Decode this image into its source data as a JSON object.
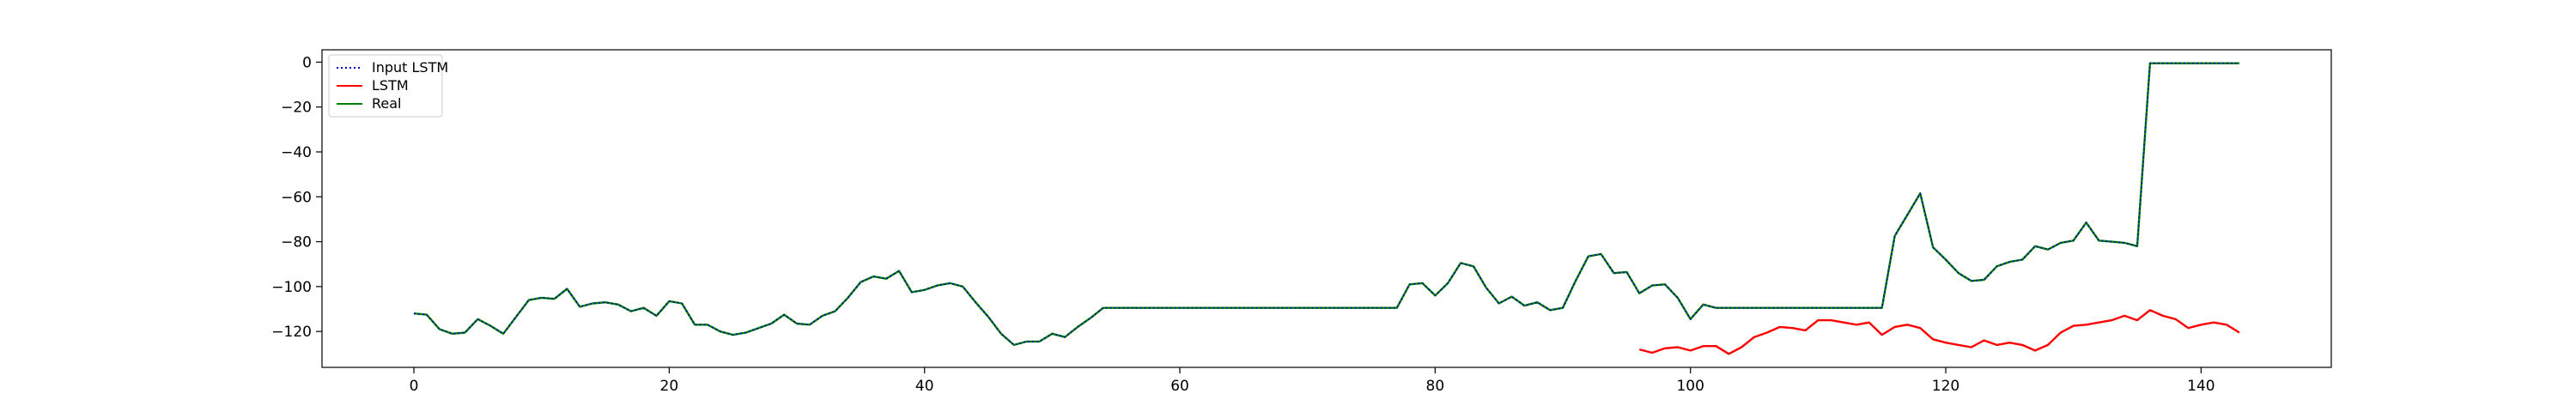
{
  "chart_data": {
    "type": "line",
    "title": "",
    "xlabel": "",
    "ylabel": "",
    "xlim": [
      -7.2,
      150.2
    ],
    "ylim": [
      -136,
      5.5
    ],
    "xticks": [
      0,
      20,
      40,
      60,
      80,
      100,
      120,
      140
    ],
    "yticks": [
      0,
      -20,
      -40,
      -60,
      -80,
      -100,
      -120
    ],
    "grid": false,
    "legend_position": "top-left",
    "legend": [
      "Input LSTM",
      "LSTM",
      "Real"
    ],
    "series": [
      {
        "name": "Input LSTM",
        "color": "#0000bf",
        "style": "dotted",
        "x_start": 0,
        "values": [
          -112,
          -112.5,
          -119,
          -121,
          -120.5,
          -114.5,
          -117.5,
          -121,
          -113.5,
          -106,
          -105,
          -105.5,
          -101,
          -109,
          -107.5,
          -107,
          -108,
          -111,
          -109.5,
          -113,
          -106.5,
          -107.5,
          -117,
          -117,
          -120,
          -121.5,
          -120.5,
          -118.5,
          -116.5,
          -112.5,
          -116.5,
          -117,
          -113,
          -111,
          -105,
          -98,
          -95.5,
          -96.5,
          -93,
          -102.5,
          -101.5,
          -99.5,
          -98.5,
          -100,
          -107,
          -113.5,
          -121,
          -126,
          -124.5,
          -124.5,
          -121,
          -122.5,
          -118,
          -114,
          -109.5,
          -109.5,
          -109.5,
          -109.5,
          -109.5,
          -109.5,
          -109.5,
          -109.5,
          -109.5,
          -109.5,
          -109.5,
          -109.5,
          -109.5,
          -109.5,
          -109.5,
          -109.5,
          -109.5,
          -109.5,
          -109.5,
          -109.5,
          -109.5,
          -109.5,
          -109.5,
          -109.5,
          -99,
          -98.5,
          -104,
          -98.5,
          -89.5,
          -91,
          -100.5,
          -107.5,
          -104.5,
          -108.5,
          -107,
          -110.5,
          -109.5,
          -97.5,
          -86.5,
          -85.5,
          -94,
          -93.5,
          -103,
          -99.5,
          -99,
          -105,
          -114.5,
          -108,
          -109.5,
          -109.5,
          -109.5,
          -109.5,
          -109.5,
          -109.5,
          -109.5,
          -109.5,
          -109.5,
          -109.5,
          -109.5,
          -109.5,
          -109.5,
          -109.5,
          -77.5,
          -68,
          -58.5,
          -82.5,
          -88,
          -94,
          -97.5,
          -97,
          -91,
          -89,
          -88,
          -82,
          -83.5,
          -80.5,
          -79.5,
          -71.5,
          -79.5,
          -80,
          -80.5,
          -82,
          -0.5,
          -0.5,
          -0.5,
          -0.5,
          -0.5,
          -0.5,
          -0.5,
          -0.5
        ]
      },
      {
        "name": "LSTM",
        "color": "#ff0000",
        "style": "solid",
        "x_start": 96,
        "values": [
          -128,
          -129.5,
          -127.5,
          -127,
          -128.5,
          -126.5,
          -126.5,
          -130,
          -127,
          -122.5,
          -120.5,
          -118,
          -118.5,
          -119.5,
          -115,
          -115,
          -116,
          -117,
          -116,
          -121.5,
          -118,
          -117,
          -118.5,
          -123.5,
          -125,
          -126,
          -127,
          -124,
          -126,
          -125,
          -126,
          -128.5,
          -126,
          -120.5,
          -117.5,
          -117,
          -116,
          -115,
          -113,
          -115,
          -110.5,
          -113,
          -114.5,
          -118.5,
          -117,
          -116,
          -117,
          -120.5
        ]
      },
      {
        "name": "Real",
        "color": "#008000",
        "style": "solid",
        "x_start": 0,
        "values": [
          -112,
          -112.5,
          -119,
          -121,
          -120.5,
          -114.5,
          -117.5,
          -121,
          -113.5,
          -106,
          -105,
          -105.5,
          -101,
          -109,
          -107.5,
          -107,
          -108,
          -111,
          -109.5,
          -113,
          -106.5,
          -107.5,
          -117,
          -117,
          -120,
          -121.5,
          -120.5,
          -118.5,
          -116.5,
          -112.5,
          -116.5,
          -117,
          -113,
          -111,
          -105,
          -98,
          -95.5,
          -96.5,
          -93,
          -102.5,
          -101.5,
          -99.5,
          -98.5,
          -100,
          -107,
          -113.5,
          -121,
          -126,
          -124.5,
          -124.5,
          -121,
          -122.5,
          -118,
          -114,
          -109.5,
          -109.5,
          -109.5,
          -109.5,
          -109.5,
          -109.5,
          -109.5,
          -109.5,
          -109.5,
          -109.5,
          -109.5,
          -109.5,
          -109.5,
          -109.5,
          -109.5,
          -109.5,
          -109.5,
          -109.5,
          -109.5,
          -109.5,
          -109.5,
          -109.5,
          -109.5,
          -109.5,
          -99,
          -98.5,
          -104,
          -98.5,
          -89.5,
          -91,
          -100.5,
          -107.5,
          -104.5,
          -108.5,
          -107,
          -110.5,
          -109.5,
          -97.5,
          -86.5,
          -85.5,
          -94,
          -93.5,
          -103,
          -99.5,
          -99,
          -105,
          -114.5,
          -108,
          -109.5,
          -109.5,
          -109.5,
          -109.5,
          -109.5,
          -109.5,
          -109.5,
          -109.5,
          -109.5,
          -109.5,
          -109.5,
          -109.5,
          -109.5,
          -109.5,
          -77.5,
          -68,
          -58.5,
          -82.5,
          -88,
          -94,
          -97.5,
          -97,
          -91,
          -89,
          -88,
          -82,
          -83.5,
          -80.5,
          -79.5,
          -71.5,
          -79.5,
          -80,
          -80.5,
          -82,
          -0.5,
          -0.5,
          -0.5,
          -0.5,
          -0.5,
          -0.5,
          -0.5,
          -0.5
        ]
      }
    ]
  }
}
